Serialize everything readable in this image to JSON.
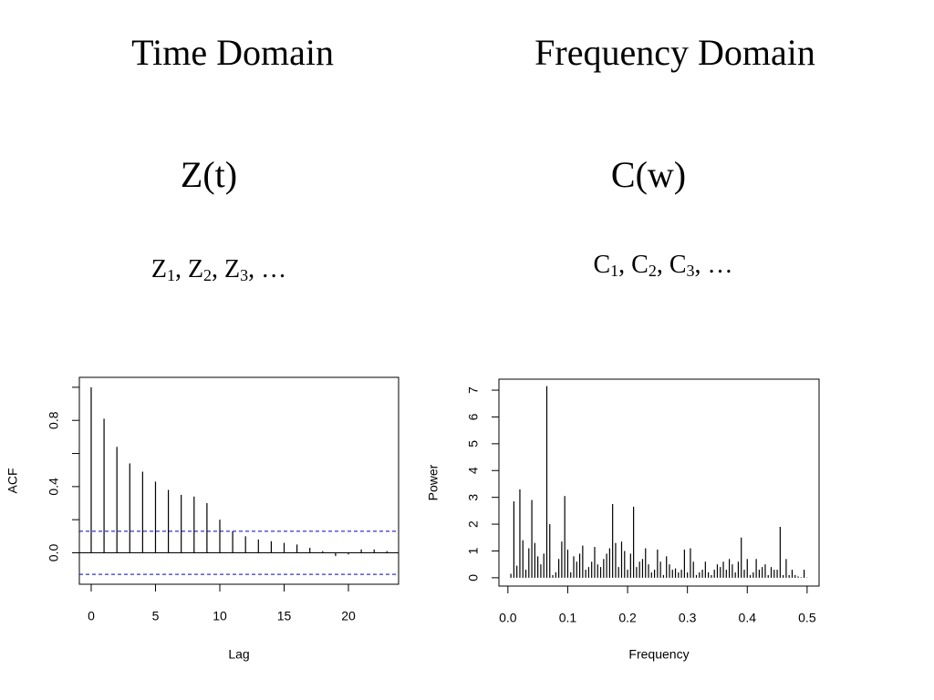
{
  "slide": {
    "headings": [
      {
        "title": "Time Domain",
        "function": "Z(t)",
        "terms": [
          {
            "letter": "Z",
            "index": "1"
          },
          {
            "letter": "Z",
            "index": "2"
          },
          {
            "letter": "Z",
            "index": "3"
          }
        ],
        "separator": ", ",
        "ellipsis": "…"
      },
      {
        "title": "Frequency Domain",
        "function": "C(w)",
        "terms": [
          {
            "letter": "C",
            "index": "1"
          },
          {
            "letter": "C",
            "index": "2"
          },
          {
            "letter": "C",
            "index": "3"
          }
        ],
        "separator": ", ",
        "ellipsis": "…"
      }
    ]
  },
  "chart_data": [
    {
      "type": "bar",
      "xlabel": "Lag",
      "ylabel": "ACF",
      "x": [
        0,
        1,
        2,
        3,
        4,
        5,
        6,
        7,
        8,
        9,
        10,
        11,
        12,
        13,
        14,
        15,
        16,
        17,
        18,
        19,
        20,
        21,
        22,
        23
      ],
      "values": [
        1.0,
        0.81,
        0.64,
        0.54,
        0.49,
        0.43,
        0.38,
        0.35,
        0.34,
        0.3,
        0.2,
        0.13,
        0.1,
        0.08,
        0.07,
        0.06,
        0.05,
        0.03,
        0.01,
        -0.02,
        -0.01,
        0.02,
        0.02,
        0.01
      ],
      "color": "#000000",
      "xlim": [
        -0.92,
        23.9
      ],
      "ylim": [
        -0.19,
        1.06
      ],
      "xticks": [
        0,
        5,
        10,
        15,
        20
      ],
      "yticks": [
        {
          "value": 0,
          "label": "0.0"
        },
        {
          "value": 0.4,
          "label": "0.4"
        },
        {
          "value": 0.8,
          "label": "0.8"
        }
      ],
      "yminor_ticks": [
        0.2,
        0.6,
        1.0
      ],
      "zero_line": 0,
      "ci_lines": {
        "values": [
          0.13,
          -0.13
        ],
        "color": "#0000cd"
      }
    },
    {
      "type": "bar",
      "xlabel": "Frequency",
      "ylabel": "Power",
      "x": [
        0.005,
        0.01,
        0.015,
        0.02,
        0.025,
        0.03,
        0.035,
        0.04,
        0.045,
        0.05,
        0.055,
        0.06,
        0.065,
        0.07,
        0.075,
        0.08,
        0.085,
        0.09,
        0.095,
        0.1,
        0.105,
        0.11,
        0.115,
        0.12,
        0.125,
        0.13,
        0.135,
        0.14,
        0.145,
        0.15,
        0.155,
        0.16,
        0.165,
        0.17,
        0.175,
        0.18,
        0.185,
        0.19,
        0.195,
        0.2,
        0.205,
        0.21,
        0.215,
        0.22,
        0.225,
        0.23,
        0.235,
        0.24,
        0.245,
        0.25,
        0.255,
        0.26,
        0.265,
        0.27,
        0.275,
        0.28,
        0.285,
        0.29,
        0.295,
        0.3,
        0.305,
        0.31,
        0.315,
        0.32,
        0.325,
        0.33,
        0.335,
        0.34,
        0.345,
        0.35,
        0.355,
        0.36,
        0.365,
        0.37,
        0.375,
        0.38,
        0.385,
        0.39,
        0.395,
        0.4,
        0.405,
        0.41,
        0.415,
        0.42,
        0.425,
        0.43,
        0.435,
        0.44,
        0.445,
        0.45,
        0.455,
        0.46,
        0.465,
        0.47,
        0.475,
        0.48,
        0.485,
        0.49,
        0.495,
        0.5
      ],
      "values": [
        0.15,
        2.85,
        0.45,
        3.3,
        1.4,
        0.3,
        1.1,
        2.9,
        1.3,
        0.8,
        0.5,
        0.9,
        7.15,
        2.0,
        0.1,
        0.2,
        0.7,
        1.35,
        3.05,
        1.05,
        0.2,
        0.8,
        0.6,
        0.9,
        1.2,
        0.3,
        0.4,
        0.6,
        1.15,
        0.5,
        0.4,
        0.7,
        0.9,
        1.1,
        2.75,
        1.3,
        0.4,
        1.35,
        1.0,
        0.3,
        0.9,
        2.65,
        0.4,
        0.6,
        0.7,
        1.1,
        0.5,
        0.2,
        0.3,
        1.05,
        0.6,
        0.1,
        0.8,
        0.5,
        0.3,
        0.35,
        0.2,
        0.3,
        1.05,
        0.2,
        1.1,
        0.6,
        0.1,
        0.2,
        0.3,
        0.6,
        0.2,
        0.1,
        0.3,
        0.5,
        0.4,
        0.6,
        0.3,
        0.7,
        0.5,
        0.2,
        0.6,
        1.5,
        0.3,
        0.7,
        0.1,
        0.2,
        0.7,
        0.3,
        0.4,
        0.5,
        0.1,
        0.4,
        0.3,
        0.3,
        1.9,
        0.1,
        0.7,
        0.1,
        0.3,
        0.1,
        0.05,
        0.02,
        0.3,
        0.01
      ],
      "color": "#000000",
      "xlim": [
        -0.015,
        0.52
      ],
      "ylim": [
        -0.31,
        7.41
      ],
      "xticks": [
        {
          "value": 0,
          "label": "0.0"
        },
        0.1,
        0.2,
        0.3,
        0.4,
        0.5
      ],
      "yticks": [
        0,
        1,
        2,
        3,
        4,
        5,
        6,
        7
      ]
    }
  ]
}
